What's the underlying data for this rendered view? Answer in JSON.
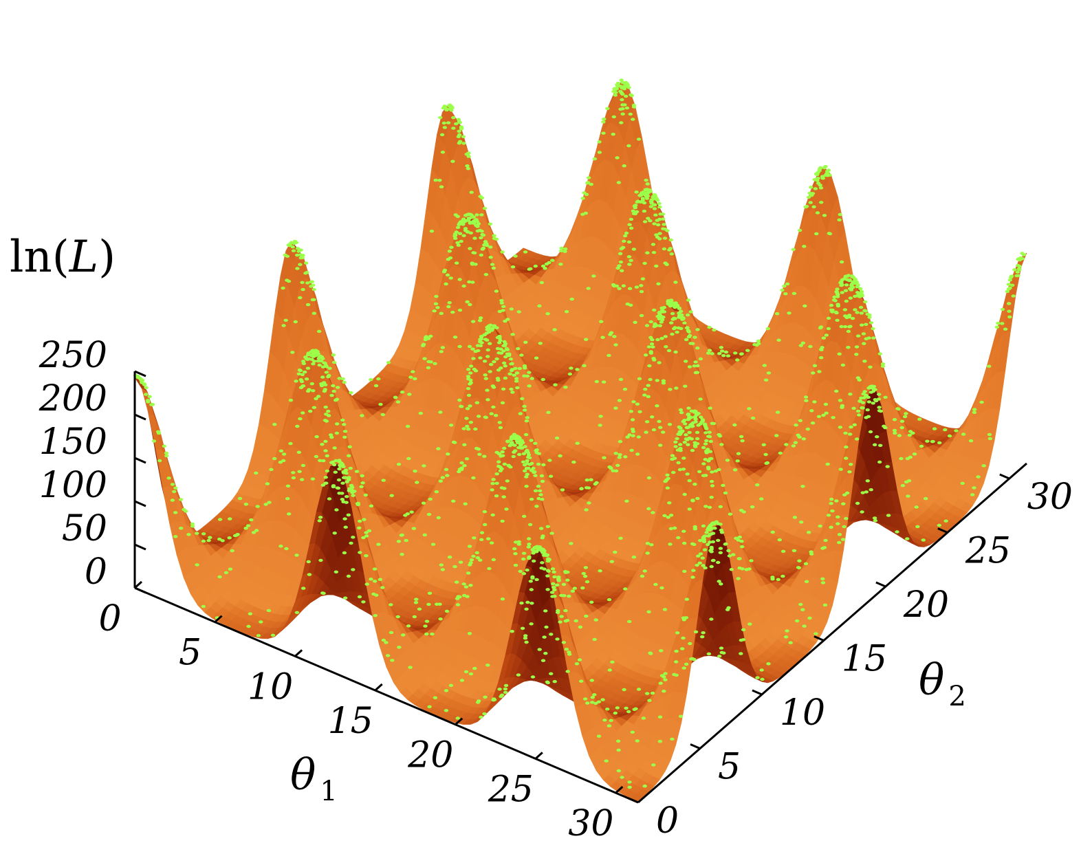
{
  "chart_data": {
    "type": "surface3d",
    "z_title_prefix": "ln(",
    "z_title_var": "L",
    "z_title_suffix": ")",
    "xlabel": "θ",
    "xlabel_sub": "1",
    "ylabel": "θ",
    "ylabel_sub": "2",
    "x_ticks": [
      "0",
      "5",
      "10",
      "15",
      "20",
      "25",
      "30"
    ],
    "y_ticks": [
      "0",
      "5",
      "10",
      "15",
      "20",
      "25",
      "30"
    ],
    "z_ticks": [
      "0",
      "50",
      "100",
      "150",
      "200",
      "250"
    ],
    "xlim": [
      0,
      31.4
    ],
    "ylim": [
      0,
      31.4
    ],
    "zlim": [
      0,
      250
    ],
    "surface_function": "(2 + cos(theta1/2)*cos(theta2/2))^5",
    "surface_colormap": [
      "#4a0000",
      "#7a1a05",
      "#b8420f",
      "#e07325",
      "#f2963f"
    ],
    "samples_color": "#9cff4a",
    "peaks": [
      {
        "theta1": 0,
        "theta2": 0,
        "lnL": 243
      },
      {
        "theta1": 0,
        "theta2": 12.57,
        "lnL": 243
      },
      {
        "theta1": 0,
        "theta2": 25.13,
        "lnL": 243
      },
      {
        "theta1": 6.28,
        "theta2": 6.28,
        "lnL": 243
      },
      {
        "theta1": 6.28,
        "theta2": 18.85,
        "lnL": 243
      },
      {
        "theta1": 6.28,
        "theta2": 31.42,
        "lnL": 243
      },
      {
        "theta1": 12.57,
        "theta2": 0,
        "lnL": 243
      },
      {
        "theta1": 12.57,
        "theta2": 12.57,
        "lnL": 243
      },
      {
        "theta1": 12.57,
        "theta2": 25.13,
        "lnL": 243
      },
      {
        "theta1": 18.85,
        "theta2": 6.28,
        "lnL": 243
      },
      {
        "theta1": 18.85,
        "theta2": 18.85,
        "lnL": 243
      },
      {
        "theta1": 18.85,
        "theta2": 31.42,
        "lnL": 243
      },
      {
        "theta1": 25.13,
        "theta2": 0,
        "lnL": 243
      },
      {
        "theta1": 25.13,
        "theta2": 12.57,
        "lnL": 243
      },
      {
        "theta1": 25.13,
        "theta2": 25.13,
        "lnL": 243
      },
      {
        "theta1": 31.42,
        "theta2": 6.28,
        "lnL": 243
      },
      {
        "theta1": 31.42,
        "theta2": 18.85,
        "lnL": 243
      },
      {
        "theta1": 31.42,
        "theta2": 31.42,
        "lnL": 243
      }
    ]
  }
}
